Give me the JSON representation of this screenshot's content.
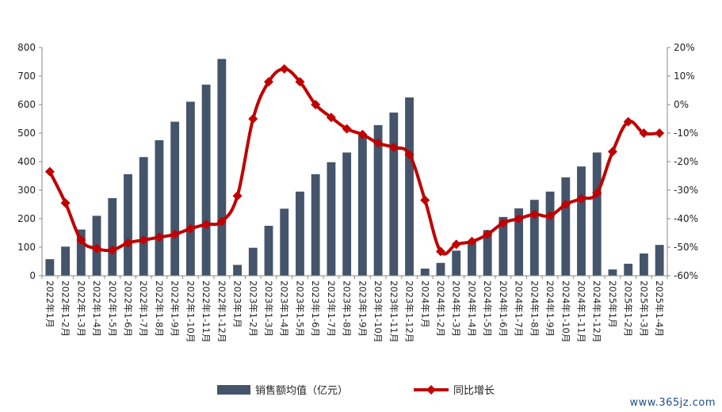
{
  "chart_data": {
    "type": "bar",
    "categories": [
      "2022年1月",
      "2022年1-2月",
      "2022年1-3月",
      "2022年1-4月",
      "2022年1-5月",
      "2022年1-6月",
      "2022年1-7月",
      "2022年1-8月",
      "2022年1-9月",
      "2022年1-10月",
      "2022年1-11月",
      "2022年1-12月",
      "2023年1月",
      "2023年1-2月",
      "2023年1-3月",
      "2023年1-4月",
      "2023年1-5月",
      "2023年1-6月",
      "2023年1-7月",
      "2023年1-8月",
      "2023年1-9月",
      "2023年1-10月",
      "2023年1-11月",
      "2023年1-12月",
      "2024年1月",
      "2024年1-2月",
      "2024年1-3月",
      "2024年1-4月",
      "2024年1-5月",
      "2024年1-6月",
      "2024年1-7月",
      "2024年1-8月",
      "2024年1-9月",
      "2024年1-10月",
      "2024年1-11月",
      "2024年1-12月",
      "2025年1月",
      "2025年1-2月",
      "2025年1-3月",
      "2025年1-4月"
    ],
    "series": [
      {
        "name": "销售额均值（亿元）",
        "type": "bar",
        "axis": "left",
        "color": "#44546a",
        "values": [
          58,
          102,
          162,
          210,
          272,
          356,
          416,
          475,
          540,
          610,
          670,
          760,
          38,
          98,
          175,
          235,
          295,
          356,
          398,
          432,
          492,
          528,
          572,
          625,
          25,
          45,
          88,
          122,
          160,
          206,
          236,
          266,
          295,
          345,
          383,
          432,
          22,
          42,
          78,
          108
        ]
      },
      {
        "name": "同比增长",
        "type": "line",
        "axis": "right",
        "color": "#c00000",
        "values": [
          -23.5,
          -34.5,
          -47.5,
          -50.5,
          -51,
          -48.5,
          -47.5,
          -46.5,
          -45.5,
          -43.5,
          -42,
          -41,
          -32,
          -5,
          8,
          12.5,
          8,
          0,
          -4.5,
          -8.5,
          -10.5,
          -13.5,
          -15,
          -17.5,
          -33.5,
          -51.5,
          -49,
          -48,
          -45.5,
          -41.5,
          -40,
          -38.5,
          -39,
          -35,
          -33,
          -31,
          -16.5,
          -6,
          -10,
          -10
        ]
      }
    ],
    "y_left": {
      "ylim": [
        0,
        800
      ],
      "ticks": [
        0,
        100,
        200,
        300,
        400,
        500,
        600,
        700,
        800
      ],
      "tick_labels": [
        "0",
        "100",
        "200",
        "300",
        "400",
        "500",
        "600",
        "700",
        "800"
      ]
    },
    "y_right": {
      "ylim": [
        -60,
        20
      ],
      "ticks": [
        -60,
        -50,
        -40,
        -30,
        -20,
        -10,
        0,
        10,
        20
      ],
      "tick_labels": [
        "-60%",
        "-50%",
        "-40%",
        "-30%",
        "-20%",
        "-10%",
        "0%",
        "10%",
        "20%"
      ]
    },
    "legend": {
      "placement": "bottom"
    },
    "grid": false
  },
  "watermark": "www.365jz.com"
}
